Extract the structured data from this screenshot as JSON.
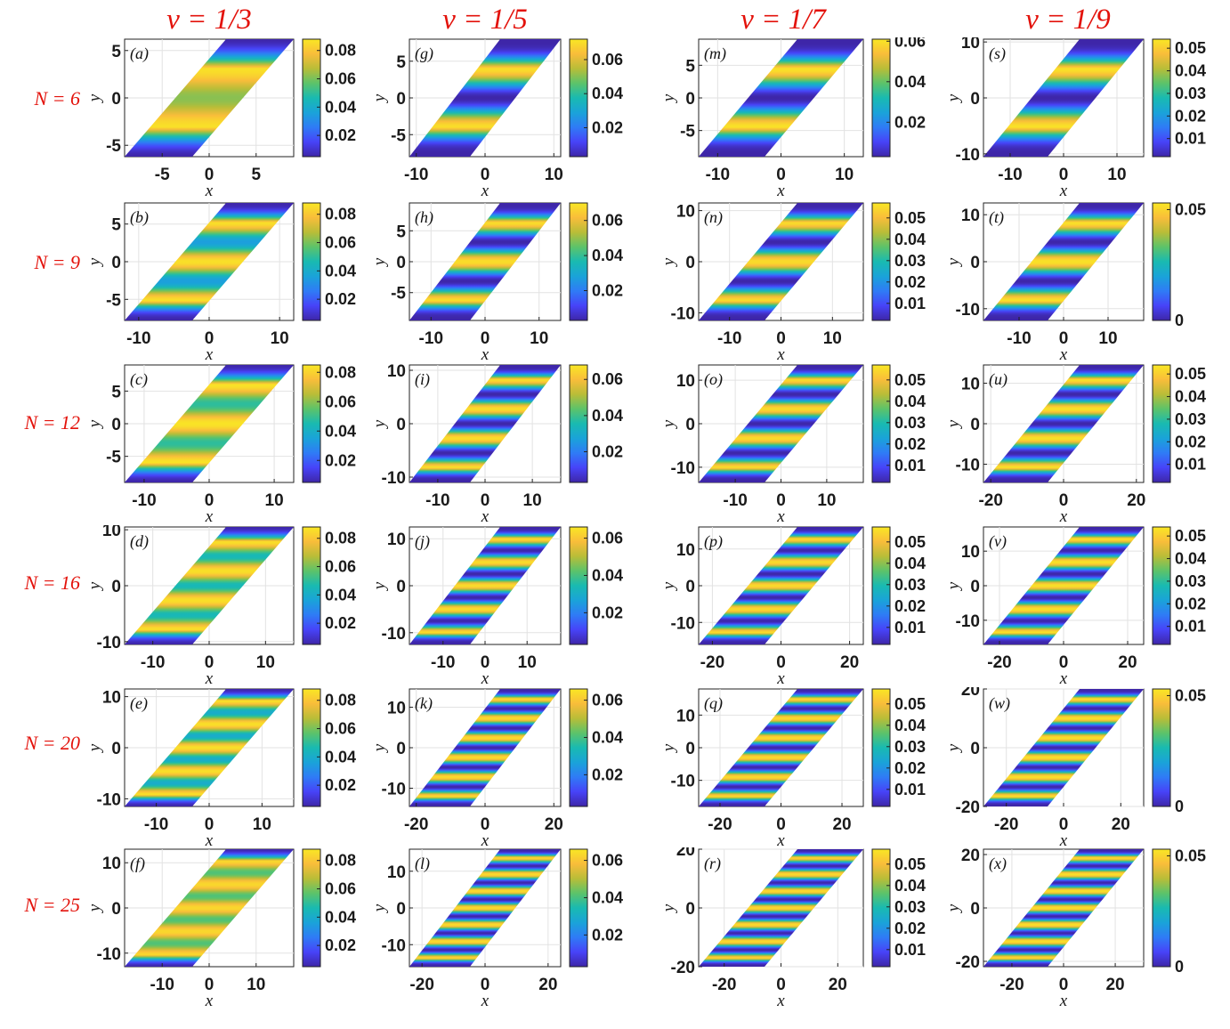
{
  "column_titles": [
    "ν = 1/3",
    "ν = 1/5",
    "ν = 1/7",
    "ν = 1/9"
  ],
  "row_labels": [
    "N = 6",
    "N = 9",
    "N = 12",
    "N = 16",
    "N = 20",
    "N = 25"
  ],
  "colormap": [
    "#3e26a8",
    "#4743f8",
    "#2f7bf6",
    "#1aa3d9",
    "#19bab1",
    "#5cc36a",
    "#b9bd38",
    "#f9bd3a",
    "#f9e724"
  ],
  "chart_data": [
    {
      "type": "heatmap",
      "panel": "(a)",
      "title": "ν = 1/3",
      "row_label": "N = 6",
      "xlabel": "x",
      "ylabel": "y",
      "xticks": [
        -5,
        0,
        5
      ],
      "yticks": [
        -5,
        0,
        5
      ],
      "xlim": [
        -9,
        9
      ],
      "ylim": [
        -6.2,
        6.2
      ],
      "cbar_ticks": [
        0.02,
        0.04,
        0.06,
        0.08
      ],
      "clim": [
        0.005,
        0.088
      ],
      "n_bands": 2,
      "band_peak": 0.086,
      "band_trough": 0.062
    },
    {
      "type": "heatmap",
      "panel": "(b)",
      "title": "ν = 1/3",
      "row_label": "N = 9",
      "xlabel": "x",
      "ylabel": "y",
      "xticks": [
        -10,
        0,
        10
      ],
      "yticks": [
        -5,
        0,
        5
      ],
      "xlim": [
        -12,
        12
      ],
      "ylim": [
        -7.8,
        7.8
      ],
      "cbar_ticks": [
        0.02,
        0.04,
        0.06,
        0.08
      ],
      "clim": [
        0.005,
        0.088
      ],
      "n_bands": 3,
      "band_peak": 0.086,
      "band_trough": 0.035
    },
    {
      "type": "heatmap",
      "panel": "(c)",
      "title": "ν = 1/3",
      "row_label": "N = 12",
      "xlabel": "x",
      "ylabel": "y",
      "xticks": [
        -10,
        0,
        10
      ],
      "yticks": [
        -5,
        0,
        5
      ],
      "xlim": [
        -13,
        13
      ],
      "ylim": [
        -9,
        9
      ],
      "cbar_ticks": [
        0.02,
        0.04,
        0.06,
        0.08
      ],
      "clim": [
        0.005,
        0.085
      ],
      "n_bands": 3,
      "band_peak": 0.084,
      "band_trough": 0.048
    },
    {
      "type": "heatmap",
      "panel": "(d)",
      "title": "ν = 1/3",
      "row_label": "N = 16",
      "xlabel": "x",
      "ylabel": "y",
      "xticks": [
        -10,
        0,
        10
      ],
      "yticks": [
        -10,
        0,
        10
      ],
      "xlim": [
        -15,
        15
      ],
      "ylim": [
        -10.5,
        10.5
      ],
      "cbar_ticks": [
        0.02,
        0.04,
        0.06,
        0.08
      ],
      "clim": [
        0.005,
        0.088
      ],
      "n_bands": 4,
      "band_peak": 0.086,
      "band_trough": 0.045
    },
    {
      "type": "heatmap",
      "panel": "(e)",
      "title": "ν = 1/3",
      "row_label": "N = 20",
      "xlabel": "x",
      "ylabel": "y",
      "xticks": [
        -10,
        0,
        10
      ],
      "yticks": [
        -10,
        0,
        10
      ],
      "xlim": [
        -16,
        16
      ],
      "ylim": [
        -11.5,
        11.5
      ],
      "cbar_ticks": [
        0.02,
        0.04,
        0.06,
        0.08
      ],
      "clim": [
        0.005,
        0.088
      ],
      "n_bands": 5,
      "band_peak": 0.086,
      "band_trough": 0.04
    },
    {
      "type": "heatmap",
      "panel": "(f)",
      "title": "ν = 1/3",
      "row_label": "N = 25",
      "xlabel": "x",
      "ylabel": "y",
      "xticks": [
        -10,
        0,
        10
      ],
      "yticks": [
        -10,
        0,
        10
      ],
      "xlim": [
        -18,
        18
      ],
      "ylim": [
        -13,
        13
      ],
      "cbar_ticks": [
        0.02,
        0.04,
        0.06,
        0.08
      ],
      "clim": [
        0.005,
        0.088
      ],
      "n_bands": 5,
      "band_peak": 0.084,
      "band_trough": 0.055
    },
    {
      "type": "heatmap",
      "panel": "(g)",
      "title": "ν = 1/5",
      "row_label": "N = 6",
      "xlabel": "x",
      "ylabel": "y",
      "xticks": [
        -10,
        0,
        10
      ],
      "yticks": [
        -5,
        0,
        5
      ],
      "xlim": [
        -11,
        11
      ],
      "ylim": [
        -8,
        8
      ],
      "cbar_ticks": [
        0.02,
        0.04,
        0.06
      ],
      "clim": [
        0.003,
        0.072
      ],
      "n_bands": 2,
      "band_peak": 0.07,
      "band_trough": 0.003
    },
    {
      "type": "heatmap",
      "panel": "(h)",
      "title": "ν = 1/5",
      "row_label": "N = 9",
      "xlabel": "x",
      "ylabel": "y",
      "xticks": [
        -10,
        0,
        10
      ],
      "yticks": [
        -5,
        0,
        5
      ],
      "xlim": [
        -14,
        14
      ],
      "ylim": [
        -9.5,
        9.5
      ],
      "cbar_ticks": [
        0.02,
        0.04,
        0.06
      ],
      "clim": [
        0.003,
        0.07
      ],
      "n_bands": 3,
      "band_peak": 0.068,
      "band_trough": 0.003
    },
    {
      "type": "heatmap",
      "panel": "(i)",
      "title": "ν = 1/5",
      "row_label": "N = 12",
      "xlabel": "x",
      "ylabel": "y",
      "xticks": [
        -10,
        0,
        10
      ],
      "yticks": [
        -10,
        0,
        10
      ],
      "xlim": [
        -16,
        16
      ],
      "ylim": [
        -11,
        11
      ],
      "cbar_ticks": [
        0.02,
        0.04,
        0.06
      ],
      "clim": [
        0.003,
        0.068
      ],
      "n_bands": 4,
      "band_peak": 0.066,
      "band_trough": 0.003
    },
    {
      "type": "heatmap",
      "panel": "(j)",
      "title": "ν = 1/5",
      "row_label": "N = 16",
      "xlabel": "x",
      "ylabel": "y",
      "xticks": [
        -10,
        0,
        10
      ],
      "yticks": [
        -10,
        0,
        10
      ],
      "xlim": [
        -18,
        18
      ],
      "ylim": [
        -12.5,
        12.5
      ],
      "cbar_ticks": [
        0.02,
        0.04,
        0.06
      ],
      "clim": [
        0.003,
        0.066
      ],
      "n_bands": 5,
      "band_peak": 0.064,
      "band_trough": 0.003
    },
    {
      "type": "heatmap",
      "panel": "(k)",
      "title": "ν = 1/5",
      "row_label": "N = 20",
      "xlabel": "x",
      "ylabel": "y",
      "xticks": [
        -20,
        0,
        20
      ],
      "yticks": [
        -10,
        0,
        10
      ],
      "xlim": [
        -22,
        22
      ],
      "ylim": [
        -14.5,
        14.5
      ],
      "cbar_ticks": [
        0.02,
        0.04,
        0.06
      ],
      "clim": [
        0.003,
        0.066
      ],
      "n_bands": 6,
      "band_peak": 0.064,
      "band_trough": 0.003
    },
    {
      "type": "heatmap",
      "panel": "(l)",
      "title": "ν = 1/5",
      "row_label": "N = 25",
      "xlabel": "x",
      "ylabel": "y",
      "xticks": [
        -20,
        0,
        20
      ],
      "yticks": [
        -10,
        0,
        10
      ],
      "xlim": [
        -24,
        24
      ],
      "ylim": [
        -16,
        16
      ],
      "cbar_ticks": [
        0.02,
        0.04,
        0.06
      ],
      "clim": [
        0.003,
        0.066
      ],
      "n_bands": 7,
      "band_peak": 0.064,
      "band_trough": 0.003
    },
    {
      "type": "heatmap",
      "panel": "(m)",
      "title": "ν = 1/7",
      "row_label": "N = 6",
      "xlabel": "x",
      "ylabel": "y",
      "xticks": [
        -10,
        0,
        10
      ],
      "yticks": [
        -5,
        0,
        5
      ],
      "xlim": [
        -13,
        13
      ],
      "ylim": [
        -9,
        9
      ],
      "cbar_ticks": [
        0.02,
        0.04,
        0.06
      ],
      "clim": [
        0.003,
        0.061
      ],
      "n_bands": 2,
      "band_peak": 0.06,
      "band_trough": 0.003
    },
    {
      "type": "heatmap",
      "panel": "(n)",
      "title": "ν = 1/7",
      "row_label": "N = 9",
      "xlabel": "x",
      "ylabel": "y",
      "xticks": [
        -10,
        0,
        10
      ],
      "yticks": [
        -10,
        0,
        10
      ],
      "xlim": [
        -16,
        16
      ],
      "ylim": [
        -11.5,
        11.5
      ],
      "cbar_ticks": [
        0.01,
        0.02,
        0.03,
        0.04,
        0.05
      ],
      "clim": [
        0.002,
        0.057
      ],
      "n_bands": 3,
      "band_peak": 0.055,
      "band_trough": 0.002
    },
    {
      "type": "heatmap",
      "panel": "(o)",
      "title": "ν = 1/7",
      "row_label": "N = 12",
      "xlabel": "x",
      "ylabel": "y",
      "xticks": [
        -10,
        0,
        10
      ],
      "yticks": [
        -10,
        0,
        10
      ],
      "xlim": [
        -18,
        18
      ],
      "ylim": [
        -13.5,
        13.5
      ],
      "cbar_ticks": [
        0.01,
        0.02,
        0.03,
        0.04,
        0.05
      ],
      "clim": [
        0.002,
        0.057
      ],
      "n_bands": 4,
      "band_peak": 0.055,
      "band_trough": 0.002
    },
    {
      "type": "heatmap",
      "panel": "(p)",
      "title": "ν = 1/7",
      "row_label": "N = 16",
      "xlabel": "x",
      "ylabel": "y",
      "xticks": [
        -20,
        0,
        20
      ],
      "yticks": [
        -10,
        0,
        10
      ],
      "xlim": [
        -24,
        24
      ],
      "ylim": [
        -16,
        16
      ],
      "cbar_ticks": [
        0.01,
        0.02,
        0.03,
        0.04,
        0.05
      ],
      "clim": [
        0.002,
        0.057
      ],
      "n_bands": 5,
      "band_peak": 0.055,
      "band_trough": 0.002
    },
    {
      "type": "heatmap",
      "panel": "(q)",
      "title": "ν = 1/7",
      "row_label": "N = 20",
      "xlabel": "x",
      "ylabel": "y",
      "xticks": [
        -20,
        0,
        20
      ],
      "yticks": [
        -10,
        0,
        10
      ],
      "xlim": [
        -27,
        27
      ],
      "ylim": [
        -18,
        18
      ],
      "cbar_ticks": [
        0.01,
        0.02,
        0.03,
        0.04,
        0.05
      ],
      "clim": [
        0.002,
        0.057
      ],
      "n_bands": 6,
      "band_peak": 0.055,
      "band_trough": 0.002
    },
    {
      "type": "heatmap",
      "panel": "(r)",
      "title": "ν = 1/7",
      "row_label": "N = 25",
      "xlabel": "x",
      "ylabel": "y",
      "xticks": [
        -20,
        0,
        20
      ],
      "yticks": [
        -20,
        0,
        20
      ],
      "xlim": [
        -29,
        29
      ],
      "ylim": [
        -20,
        20
      ],
      "cbar_ticks": [
        0.01,
        0.02,
        0.03,
        0.04,
        0.05
      ],
      "clim": [
        0.002,
        0.057
      ],
      "n_bands": 7,
      "band_peak": 0.055,
      "band_trough": 0.002
    },
    {
      "type": "heatmap",
      "panel": "(s)",
      "title": "ν = 1/9",
      "row_label": "N = 6",
      "xlabel": "x",
      "ylabel": "y",
      "xticks": [
        -10,
        0,
        10
      ],
      "yticks": [
        -10,
        0,
        10
      ],
      "xlim": [
        -15,
        15
      ],
      "ylim": [
        -10.5,
        10.5
      ],
      "cbar_ticks": [
        0.01,
        0.02,
        0.03,
        0.04,
        0.05
      ],
      "clim": [
        0.002,
        0.054
      ],
      "n_bands": 2,
      "band_peak": 0.053,
      "band_trough": 0.002
    },
    {
      "type": "heatmap",
      "panel": "(t)",
      "title": "ν = 1/9",
      "row_label": "N = 9",
      "xlabel": "x",
      "ylabel": "y",
      "xticks": [
        -10,
        0,
        10
      ],
      "yticks": [
        -10,
        0,
        10
      ],
      "xlim": [
        -18,
        18
      ],
      "ylim": [
        -12.5,
        12.5
      ],
      "cbar_ticks": [
        0,
        0.05
      ],
      "clim": [
        0,
        0.053
      ],
      "n_bands": 3,
      "band_peak": 0.052,
      "band_trough": 0.0
    },
    {
      "type": "heatmap",
      "panel": "(u)",
      "title": "ν = 1/9",
      "row_label": "N = 12",
      "xlabel": "x",
      "ylabel": "y",
      "xticks": [
        -20,
        0,
        20
      ],
      "yticks": [
        -10,
        0,
        10
      ],
      "xlim": [
        -22,
        22
      ],
      "ylim": [
        -14.5,
        14.5
      ],
      "cbar_ticks": [
        0.01,
        0.02,
        0.03,
        0.04,
        0.05
      ],
      "clim": [
        0.002,
        0.054
      ],
      "n_bands": 4,
      "band_peak": 0.053,
      "band_trough": 0.002
    },
    {
      "type": "heatmap",
      "panel": "(v)",
      "title": "ν = 1/9",
      "row_label": "N = 16",
      "xlabel": "x",
      "ylabel": "y",
      "xticks": [
        -20,
        0,
        20
      ],
      "yticks": [
        -10,
        0,
        10
      ],
      "xlim": [
        -25,
        25
      ],
      "ylim": [
        -17,
        17
      ],
      "cbar_ticks": [
        0.01,
        0.02,
        0.03,
        0.04,
        0.05
      ],
      "clim": [
        0.002,
        0.054
      ],
      "n_bands": 5,
      "band_peak": 0.053,
      "band_trough": 0.002
    },
    {
      "type": "heatmap",
      "panel": "(w)",
      "title": "ν = 1/9",
      "row_label": "N = 20",
      "xlabel": "x",
      "ylabel": "y",
      "xticks": [
        -20,
        0,
        20
      ],
      "yticks": [
        -20,
        0,
        20
      ],
      "xlim": [
        -28,
        28
      ],
      "ylim": [
        -20,
        20
      ],
      "cbar_ticks": [
        0,
        0.05
      ],
      "clim": [
        0,
        0.053
      ],
      "n_bands": 6,
      "band_peak": 0.052,
      "band_trough": 0.0
    },
    {
      "type": "heatmap",
      "panel": "(x)",
      "title": "ν = 1/9",
      "row_label": "N = 25",
      "xlabel": "x",
      "ylabel": "y",
      "xticks": [
        -20,
        0,
        20
      ],
      "yticks": [
        -20,
        0,
        20
      ],
      "xlim": [
        -31,
        31
      ],
      "ylim": [
        -22,
        22
      ],
      "cbar_ticks": [
        0,
        0.05
      ],
      "clim": [
        0,
        0.053
      ],
      "n_bands": 7,
      "band_peak": 0.052,
      "band_trough": 0.0
    }
  ]
}
